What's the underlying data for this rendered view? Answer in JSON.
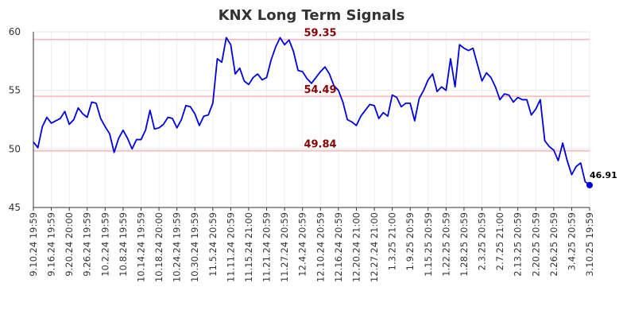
{
  "chart_data": {
    "type": "line",
    "title": "KNX Long Term Signals",
    "xlabel": "",
    "ylabel": "",
    "ylim": [
      45,
      60
    ],
    "yticks": [
      45,
      50,
      55,
      60
    ],
    "grid": true,
    "line_color": "#0000dd",
    "reference_line_color": "#ffb3b3",
    "reference_label_color": "#8b0000",
    "reference_lines": [
      {
        "value": 59.35,
        "label": "59.35"
      },
      {
        "value": 54.49,
        "label": "54.49"
      },
      {
        "value": 49.84,
        "label": "49.84"
      }
    ],
    "last_point": {
      "value": 46.91,
      "label": "46.91"
    },
    "x_tick_labels": [
      "9.10.24 19:59",
      "9.16.24 19:59",
      "9.20.24 20:00",
      "9.26.24 19:59",
      "10.2.24 19:59",
      "10.8.24 19:59",
      "10.14.24 19:59",
      "10.18.24 20:00",
      "10.24.24 19:59",
      "10.30.24 19:59",
      "11.5.24 20:59",
      "11.11.24 20:59",
      "11.15.24 21:00",
      "11.21.24 20:59",
      "11.27.24 20:59",
      "12.4.24 20:59",
      "12.10.24 20:59",
      "12.16.24 20:59",
      "12.20.24 21:00",
      "12.27.24 21:00",
      "1.3.25 21:00",
      "1.9.25 20:59",
      "1.15.25 20:59",
      "1.22.25 20:59",
      "1.28.25 20:59",
      "2.3.25 20:59",
      "2.7.25 21:00",
      "2.13.25 20:59",
      "2.20.25 20:59",
      "2.26.25 20:59",
      "3.4.25 20:59",
      "3.10.25 19:59"
    ],
    "series": [
      {
        "values": [
          50.6,
          50.1,
          51.9,
          52.7,
          52.2,
          52.4,
          52.6,
          53.2,
          52.1,
          52.5,
          53.5,
          53.0,
          52.7,
          54.0,
          53.9,
          52.6,
          51.9,
          51.3,
          49.7,
          50.9,
          51.6,
          50.9,
          50.0,
          50.8,
          50.8,
          51.6,
          53.3,
          51.7,
          51.8,
          52.1,
          52.7,
          52.6,
          51.8,
          52.5,
          53.7,
          53.6,
          53.0,
          52.0,
          52.8,
          52.9,
          53.9,
          57.7,
          57.4,
          59.5,
          58.9,
          56.4,
          56.9,
          55.8,
          55.5,
          56.1,
          56.4,
          55.9,
          56.1,
          57.6,
          58.7,
          59.5,
          58.9,
          59.3,
          58.3,
          56.7,
          56.6,
          56.0,
          55.6,
          56.1,
          56.6,
          57.0,
          56.4,
          55.4,
          55.0,
          54.0,
          52.5,
          52.3,
          52.0,
          52.8,
          53.3,
          53.8,
          53.7,
          52.6,
          53.1,
          52.8,
          54.6,
          54.4,
          53.6,
          53.9,
          53.9,
          52.4,
          54.3,
          55.0,
          55.9,
          56.4,
          54.9,
          55.3,
          55.0,
          57.7,
          55.3,
          58.9,
          58.6,
          58.4,
          58.6,
          57.2,
          55.8,
          56.5,
          56.1,
          55.3,
          54.2,
          54.7,
          54.6,
          54.0,
          54.4,
          54.2,
          54.2,
          52.9,
          53.4,
          54.2,
          50.7,
          50.2,
          49.9,
          49.0,
          50.5,
          49.0,
          47.8,
          48.5,
          48.8,
          47.2,
          46.91
        ]
      }
    ]
  }
}
